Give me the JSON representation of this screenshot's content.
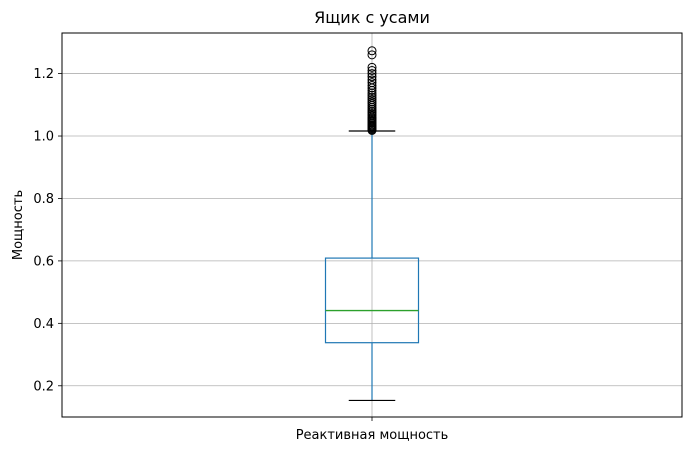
{
  "chart_data": {
    "type": "box",
    "title": "Ящик с усами",
    "xlabel": "",
    "ylabel": "Мощность",
    "categories": [
      "Реактивная мощность"
    ],
    "ylim": [
      0.1,
      1.33
    ],
    "yticks": [
      0.2,
      0.4,
      0.6,
      0.8,
      1.0,
      1.2
    ],
    "ytick_labels": [
      "0.2",
      "0.4",
      "0.6",
      "0.8",
      "1.0",
      "1.2"
    ],
    "grid": true,
    "boxes": [
      {
        "name": "Реактивная мощность",
        "whisker_low": 0.153,
        "q1": 0.338,
        "median": 0.441,
        "q3": 0.609,
        "whisker_high": 1.016,
        "outliers": [
          1.018,
          1.021,
          1.024,
          1.027,
          1.03,
          1.033,
          1.036,
          1.04,
          1.044,
          1.048,
          1.052,
          1.056,
          1.06,
          1.065,
          1.07,
          1.075,
          1.08,
          1.086,
          1.092,
          1.098,
          1.104,
          1.11,
          1.117,
          1.124,
          1.131,
          1.138,
          1.146,
          1.154,
          1.162,
          1.171,
          1.18,
          1.19,
          1.2,
          1.21,
          1.22,
          1.26,
          1.273
        ]
      }
    ],
    "colors": {
      "box": "#1f77b4",
      "median": "#2ca02c",
      "whisker_cap": "#000000",
      "outlier": "#000000",
      "grid": "#b0b0b0"
    }
  }
}
